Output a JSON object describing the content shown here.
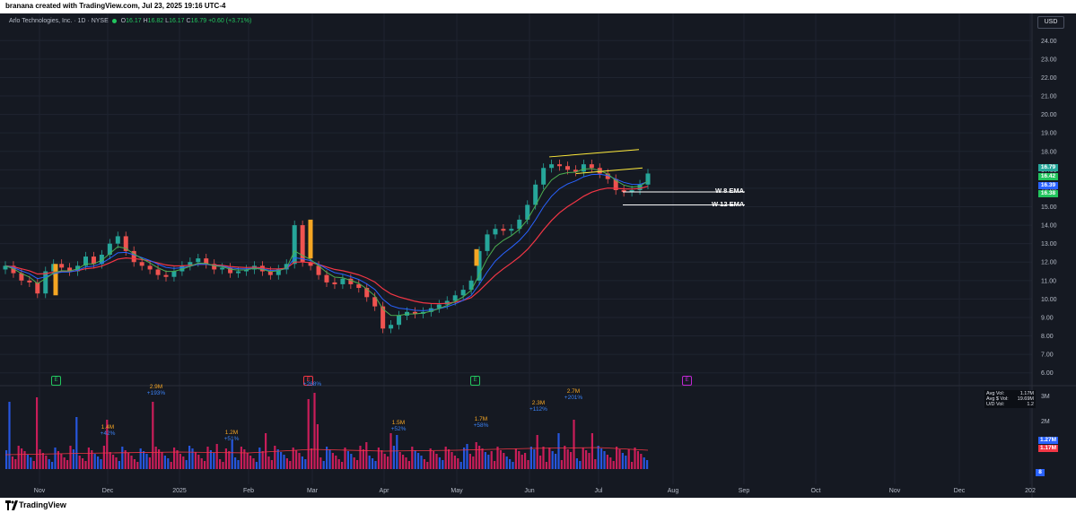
{
  "header": {
    "credit": "branana created with TradingView.com, Jul 23, 2025 19:16 UTC-4"
  },
  "legend": {
    "symbol": "Arlo Technologies, Inc. · 1D · NYSE",
    "open_label": "O",
    "open": "16.17",
    "high_label": "H",
    "high": "16.82",
    "low_label": "L",
    "low": "16.17",
    "close_label": "C",
    "close": "16.79",
    "change": "+0.60 (+3.71%)"
  },
  "currency_button": "USD",
  "y_axis_ticks": [
    "24.00",
    "23.00",
    "22.00",
    "21.00",
    "20.00",
    "19.00",
    "18.00",
    "17.00",
    "16.00",
    "15.00",
    "14.00",
    "13.00",
    "12.00",
    "11.00",
    "10.00",
    "9.00",
    "8.00",
    "7.00",
    "6.00"
  ],
  "price_tags": [
    {
      "label": "16.79",
      "color": "#26a69a"
    },
    {
      "label": "16.42",
      "color": "#22c55e"
    },
    {
      "label": "16.39",
      "color": "#2962ff"
    },
    {
      "label": "16.38",
      "color": "#22c55e"
    }
  ],
  "ema_labels": {
    "w8": "W 8 EMA",
    "w12": "W 12 EMA"
  },
  "volume_axis": [
    "3M",
    "2M"
  ],
  "volume_tags": [
    {
      "label": "1.27M",
      "color": "#2962ff"
    },
    {
      "label": "1.17M",
      "color": "#f23645"
    },
    {
      "label": "8",
      "color": "#2962ff"
    }
  ],
  "volume_info": [
    {
      "k": "Avg Vol:",
      "v": "1.17M"
    },
    {
      "k": "Avg $ Vol:",
      "v": "19.69M"
    },
    {
      "k": "U/D Vol:",
      "v": "1.2"
    }
  ],
  "volume_annotations": [
    {
      "vol": "1.4M",
      "pct": "+42%"
    },
    {
      "vol": "2.9M",
      "pct": "+193%"
    },
    {
      "vol": "1.2M",
      "pct": "+51%"
    },
    {
      "vol": "",
      "pct": "+268%"
    },
    {
      "vol": "1.5M",
      "pct": "+52%"
    },
    {
      "vol": "1.7M",
      "pct": "+58%"
    },
    {
      "vol": "2.3M",
      "pct": "+112%"
    },
    {
      "vol": "2.7M",
      "pct": "+201%"
    }
  ],
  "earnings_markers": [
    "E",
    "E",
    "E",
    "E"
  ],
  "x_axis": [
    "Nov",
    "Dec",
    "2025",
    "Feb",
    "Mar",
    "Apr",
    "May",
    "Jun",
    "Jul",
    "Aug",
    "Sep",
    "Oct",
    "Nov",
    "Dec",
    "202"
  ],
  "footer": {
    "brand": "TradingView"
  },
  "colors": {
    "bg": "#151922",
    "up": "#26a69a",
    "down": "#ef5350",
    "ema_red": "#f23645",
    "ema_blue": "#2962ff",
    "ema_green": "#4caf50",
    "trend": "#ffeb3b"
  },
  "chart_data": {
    "type": "line",
    "ylim": [
      5.5,
      24.5
    ],
    "ema_levels": {
      "w8": 15.8,
      "w12": 15.1
    },
    "series": [
      {
        "name": "Close",
        "values": [
          11.8,
          11.4,
          11.0,
          10.9,
          10.3,
          11.5,
          11.9,
          11.7,
          11.5,
          11.8,
          12.3,
          11.9,
          12.4,
          13.0,
          13.4,
          12.6,
          12.0,
          11.8,
          11.6,
          11.3,
          11.2,
          11.5,
          11.8,
          12.0,
          12.2,
          11.9,
          11.6,
          11.7,
          11.4,
          11.5,
          11.6,
          11.8,
          11.5,
          11.3,
          11.6,
          11.9,
          14.0,
          12.0,
          11.8,
          11.3,
          10.9,
          10.8,
          11.1,
          10.8,
          10.6,
          10.1,
          9.6,
          8.4,
          8.6,
          9.1,
          9.3,
          9.2,
          9.3,
          9.5,
          9.7,
          9.9,
          10.2,
          10.5,
          11.0,
          12.6,
          13.5,
          13.8,
          13.7,
          13.8,
          14.3,
          15.1,
          16.2,
          17.1,
          17.3,
          17.2,
          17.0,
          16.9,
          17.3,
          17.1,
          16.8,
          16.5,
          15.9,
          15.8,
          15.9,
          16.2,
          16.8
        ]
      }
    ]
  }
}
